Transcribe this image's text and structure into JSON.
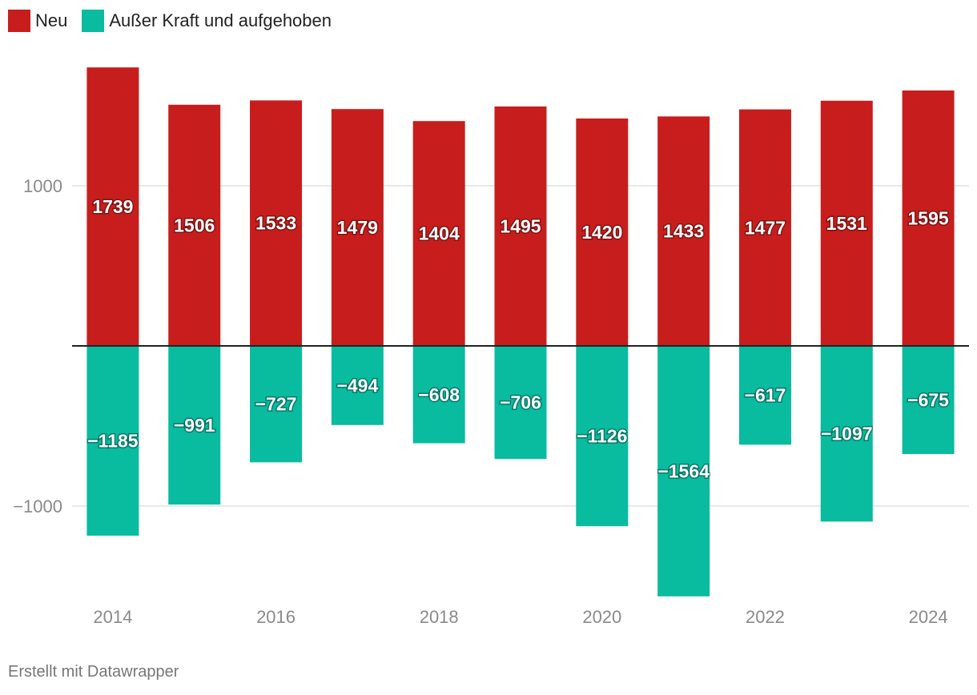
{
  "legend": [
    {
      "label": "Neu",
      "color": "#c71e1d"
    },
    {
      "label": "Außer Kraft und aufgehoben",
      "color": "#09bb9f"
    }
  ],
  "footer": {
    "credit": "Erstellt mit Datawrapper"
  },
  "chart_data": {
    "type": "bar",
    "stacked": true,
    "title": "",
    "xlabel": "",
    "ylabel": "",
    "ylim": [
      -1570,
      1750
    ],
    "y_ticks": [
      1000,
      -1000
    ],
    "y_tick_labels": [
      "1000",
      "−1000"
    ],
    "categories": [
      "2014",
      "2015",
      "2016",
      "2017",
      "2018",
      "2019",
      "2020",
      "2021",
      "2022",
      "2023",
      "2024"
    ],
    "x_tick_labels": [
      "2014",
      "",
      "2016",
      "",
      "2018",
      "",
      "2020",
      "",
      "2022",
      "",
      "2024"
    ],
    "series": [
      {
        "name": "Neu",
        "color": "#c71e1d",
        "values": [
          1739,
          1506,
          1533,
          1479,
          1404,
          1495,
          1420,
          1433,
          1477,
          1531,
          1595
        ],
        "labels": [
          "1739",
          "1506",
          "1533",
          "1479",
          "1404",
          "1495",
          "1420",
          "1433",
          "1477",
          "1531",
          "1595"
        ]
      },
      {
        "name": "Außer Kraft und aufgehoben",
        "color": "#09bb9f",
        "values": [
          -1185,
          -991,
          -727,
          -494,
          -608,
          -706,
          -1126,
          -1564,
          -617,
          -1097,
          -675
        ],
        "labels": [
          "−1185",
          "−991",
          "−727",
          "−494",
          "−608",
          "−706",
          "−1126",
          "−1564",
          "−617",
          "−1097",
          "−675"
        ]
      }
    ],
    "grid": true,
    "legend_position": "top-left"
  }
}
